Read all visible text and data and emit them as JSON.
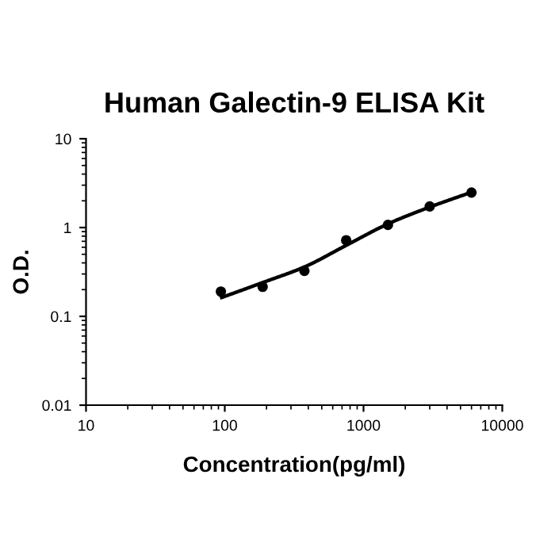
{
  "chart_data": {
    "type": "scatter",
    "title": "Human Galectin-9 ELISA Kit",
    "xlabel": "Concentration(pg/ml)",
    "ylabel": "O.D.",
    "log": "xy",
    "grid": false,
    "legend": false,
    "xlim": [
      10,
      10000
    ],
    "xticks": [
      10,
      100,
      1000,
      10000
    ],
    "ylim": [
      0.01,
      10
    ],
    "yticks": [
      0.01,
      0.1,
      1,
      10
    ],
    "series": [
      {
        "color": "#000000",
        "marker": "circle",
        "x": [
          93.75,
          187.5,
          375,
          750,
          1500,
          3000,
          6000
        ],
        "values": [
          0.19,
          0.215,
          0.325,
          0.72,
          1.07,
          1.73,
          2.48
        ]
      },
      {
        "type": "line",
        "color": "#000000",
        "marker": "none",
        "line_style": "solid",
        "x": [
          95,
          187.5,
          375,
          750,
          1500,
          3000,
          6000
        ],
        "values": [
          0.163,
          0.24,
          0.36,
          0.63,
          1.1,
          1.7,
          2.5
        ]
      }
    ]
  }
}
